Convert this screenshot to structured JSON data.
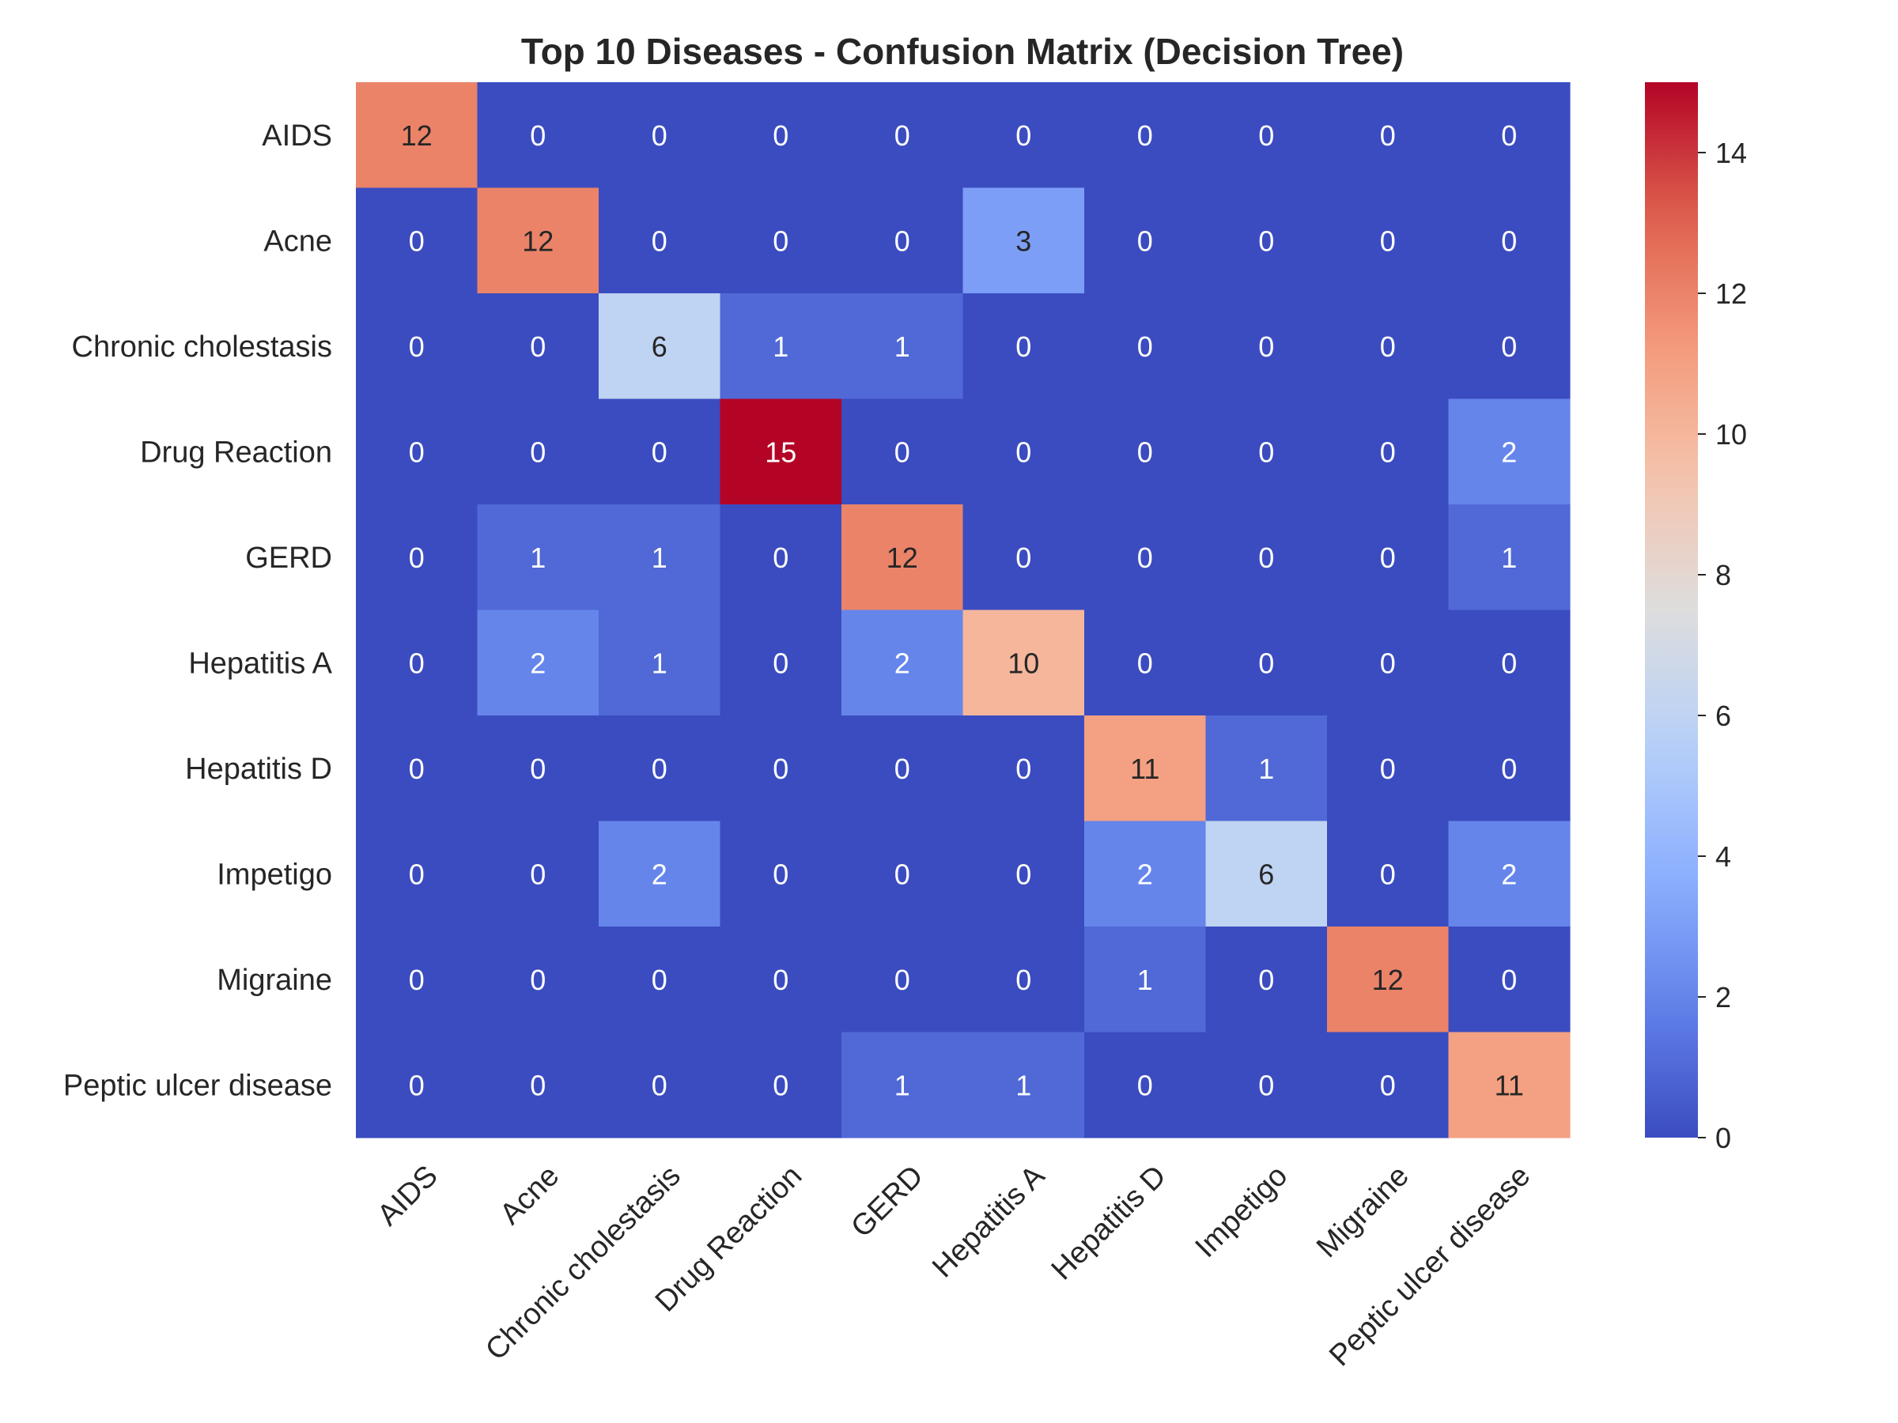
{
  "chart_data": {
    "type": "heatmap",
    "title": "Top 10 Diseases - Confusion Matrix (Decision Tree)",
    "xlabel": "",
    "ylabel": "",
    "row_labels": [
      "AIDS",
      "Acne",
      "Chronic cholestasis",
      "Drug Reaction",
      "GERD",
      "Hepatitis A",
      "Hepatitis D",
      "Impetigo",
      "Migraine",
      "Peptic ulcer disease"
    ],
    "col_labels": [
      "AIDS",
      "Acne",
      "Chronic cholestasis",
      "Drug Reaction",
      "GERD",
      "Hepatitis A",
      "Hepatitis D",
      "Impetigo",
      "Migraine",
      "Peptic ulcer disease"
    ],
    "values": [
      [
        12,
        0,
        0,
        0,
        0,
        0,
        0,
        0,
        0,
        0
      ],
      [
        0,
        12,
        0,
        0,
        0,
        3,
        0,
        0,
        0,
        0
      ],
      [
        0,
        0,
        6,
        1,
        1,
        0,
        0,
        0,
        0,
        0
      ],
      [
        0,
        0,
        0,
        15,
        0,
        0,
        0,
        0,
        0,
        2
      ],
      [
        0,
        1,
        1,
        0,
        12,
        0,
        0,
        0,
        0,
        1
      ],
      [
        0,
        2,
        1,
        0,
        2,
        10,
        0,
        0,
        0,
        0
      ],
      [
        0,
        0,
        0,
        0,
        0,
        0,
        11,
        1,
        0,
        0
      ],
      [
        0,
        0,
        2,
        0,
        0,
        0,
        2,
        6,
        0,
        2
      ],
      [
        0,
        0,
        0,
        0,
        0,
        0,
        1,
        0,
        12,
        0
      ],
      [
        0,
        0,
        0,
        0,
        1,
        1,
        0,
        0,
        0,
        11
      ]
    ],
    "colormap": "coolwarm",
    "vmin": 0,
    "vmax": 15,
    "colorbar_ticks": [
      0,
      2,
      4,
      6,
      8,
      10,
      12,
      14
    ],
    "grid": false
  }
}
